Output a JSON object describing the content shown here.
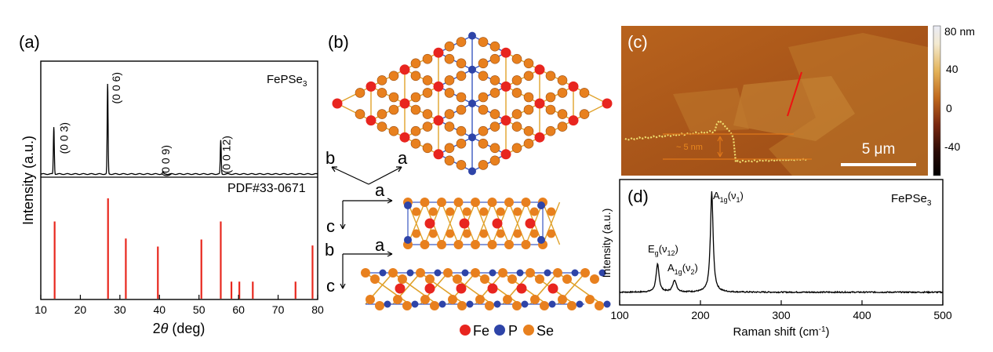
{
  "panels": {
    "a": "(a)",
    "b": "(b)",
    "c": "(c)",
    "d": "(d)"
  },
  "chart_data": [
    {
      "id": "a",
      "type": "line",
      "x_ticks": [
        "10",
        "20",
        "30",
        "40",
        "50",
        "60",
        "70",
        "80"
      ],
      "xlim": [
        10,
        80
      ],
      "x_label_italic": "θ",
      "x_label_prefix": "2",
      "x_label_suffix": " (deg)",
      "ylabel": "Intensity (a.u.)",
      "sample_label": "FePSe",
      "sample_sub": "3",
      "ref_label": "PDF#33-0671",
      "ref_color": "#e8281e",
      "xrd_peaks": [
        {
          "x": 13.3,
          "h": 0.42,
          "label": "(0 0 3)"
        },
        {
          "x": 26.9,
          "h": 0.8,
          "label": "(0 0 6)"
        },
        {
          "x": 40.9,
          "h": 0.02,
          "label": "(0 0 9)"
        },
        {
          "x": 55.5,
          "h": 0.3,
          "label": "(0 0 12)"
        }
      ],
      "pdf_lines": [
        {
          "x": 13.5,
          "h": 0.77
        },
        {
          "x": 27.0,
          "h": 1.0
        },
        {
          "x": 31.5,
          "h": 0.6
        },
        {
          "x": 39.6,
          "h": 0.52
        },
        {
          "x": 50.6,
          "h": 0.59
        },
        {
          "x": 55.5,
          "h": 0.77
        },
        {
          "x": 58.2,
          "h": 0.17
        },
        {
          "x": 60.2,
          "h": 0.17
        },
        {
          "x": 63.6,
          "h": 0.17
        },
        {
          "x": 74.4,
          "h": 0.17
        },
        {
          "x": 78.7,
          "h": 0.53
        }
      ]
    },
    {
      "id": "d",
      "type": "line",
      "x_ticks": [
        "100",
        "200",
        "300",
        "400",
        "500"
      ],
      "xlim": [
        100,
        500
      ],
      "xlabel": "Raman shift (cm",
      "xlabel_sup": "-1",
      "xlabel_end": ")",
      "ylabel": "Intensity (a.u.)",
      "sample_label": "FePSe",
      "sample_sub": "3",
      "peaks": [
        {
          "x": 147,
          "h": 0.28,
          "w": 2.2
        },
        {
          "x": 168,
          "h": 0.12,
          "w": 2.6
        },
        {
          "x": 214,
          "h": 1.0,
          "w": 2.0
        }
      ],
      "annotations": [
        {
          "main": "E",
          "sub1": "g",
          "paren": "(ν",
          "sub2": "12",
          "close": ")"
        },
        {
          "main": "A",
          "sub1": "1g",
          "paren": "(ν",
          "sub2": "2",
          "close": ")"
        },
        {
          "main": "A",
          "sub1": "1g",
          "paren": "(ν",
          "sub2": "1",
          "close": ")"
        }
      ]
    }
  ],
  "structure": {
    "axis_b": "b",
    "axis_a": "a",
    "axis_c": "c",
    "legend": [
      {
        "label": "Fe",
        "color": "#e8251f"
      },
      {
        "label": "P",
        "color": "#2e44a8"
      },
      {
        "label": "Se",
        "color": "#e8801e"
      }
    ],
    "bond_fe_se": "#e0a22b",
    "bond_p_se": "#3a58c0"
  },
  "afm": {
    "colorbar_ticks": [
      "80 nm",
      "40",
      "0",
      "-40"
    ],
    "step_label": "~ 5 nm",
    "scale_bar": "5 μm"
  }
}
